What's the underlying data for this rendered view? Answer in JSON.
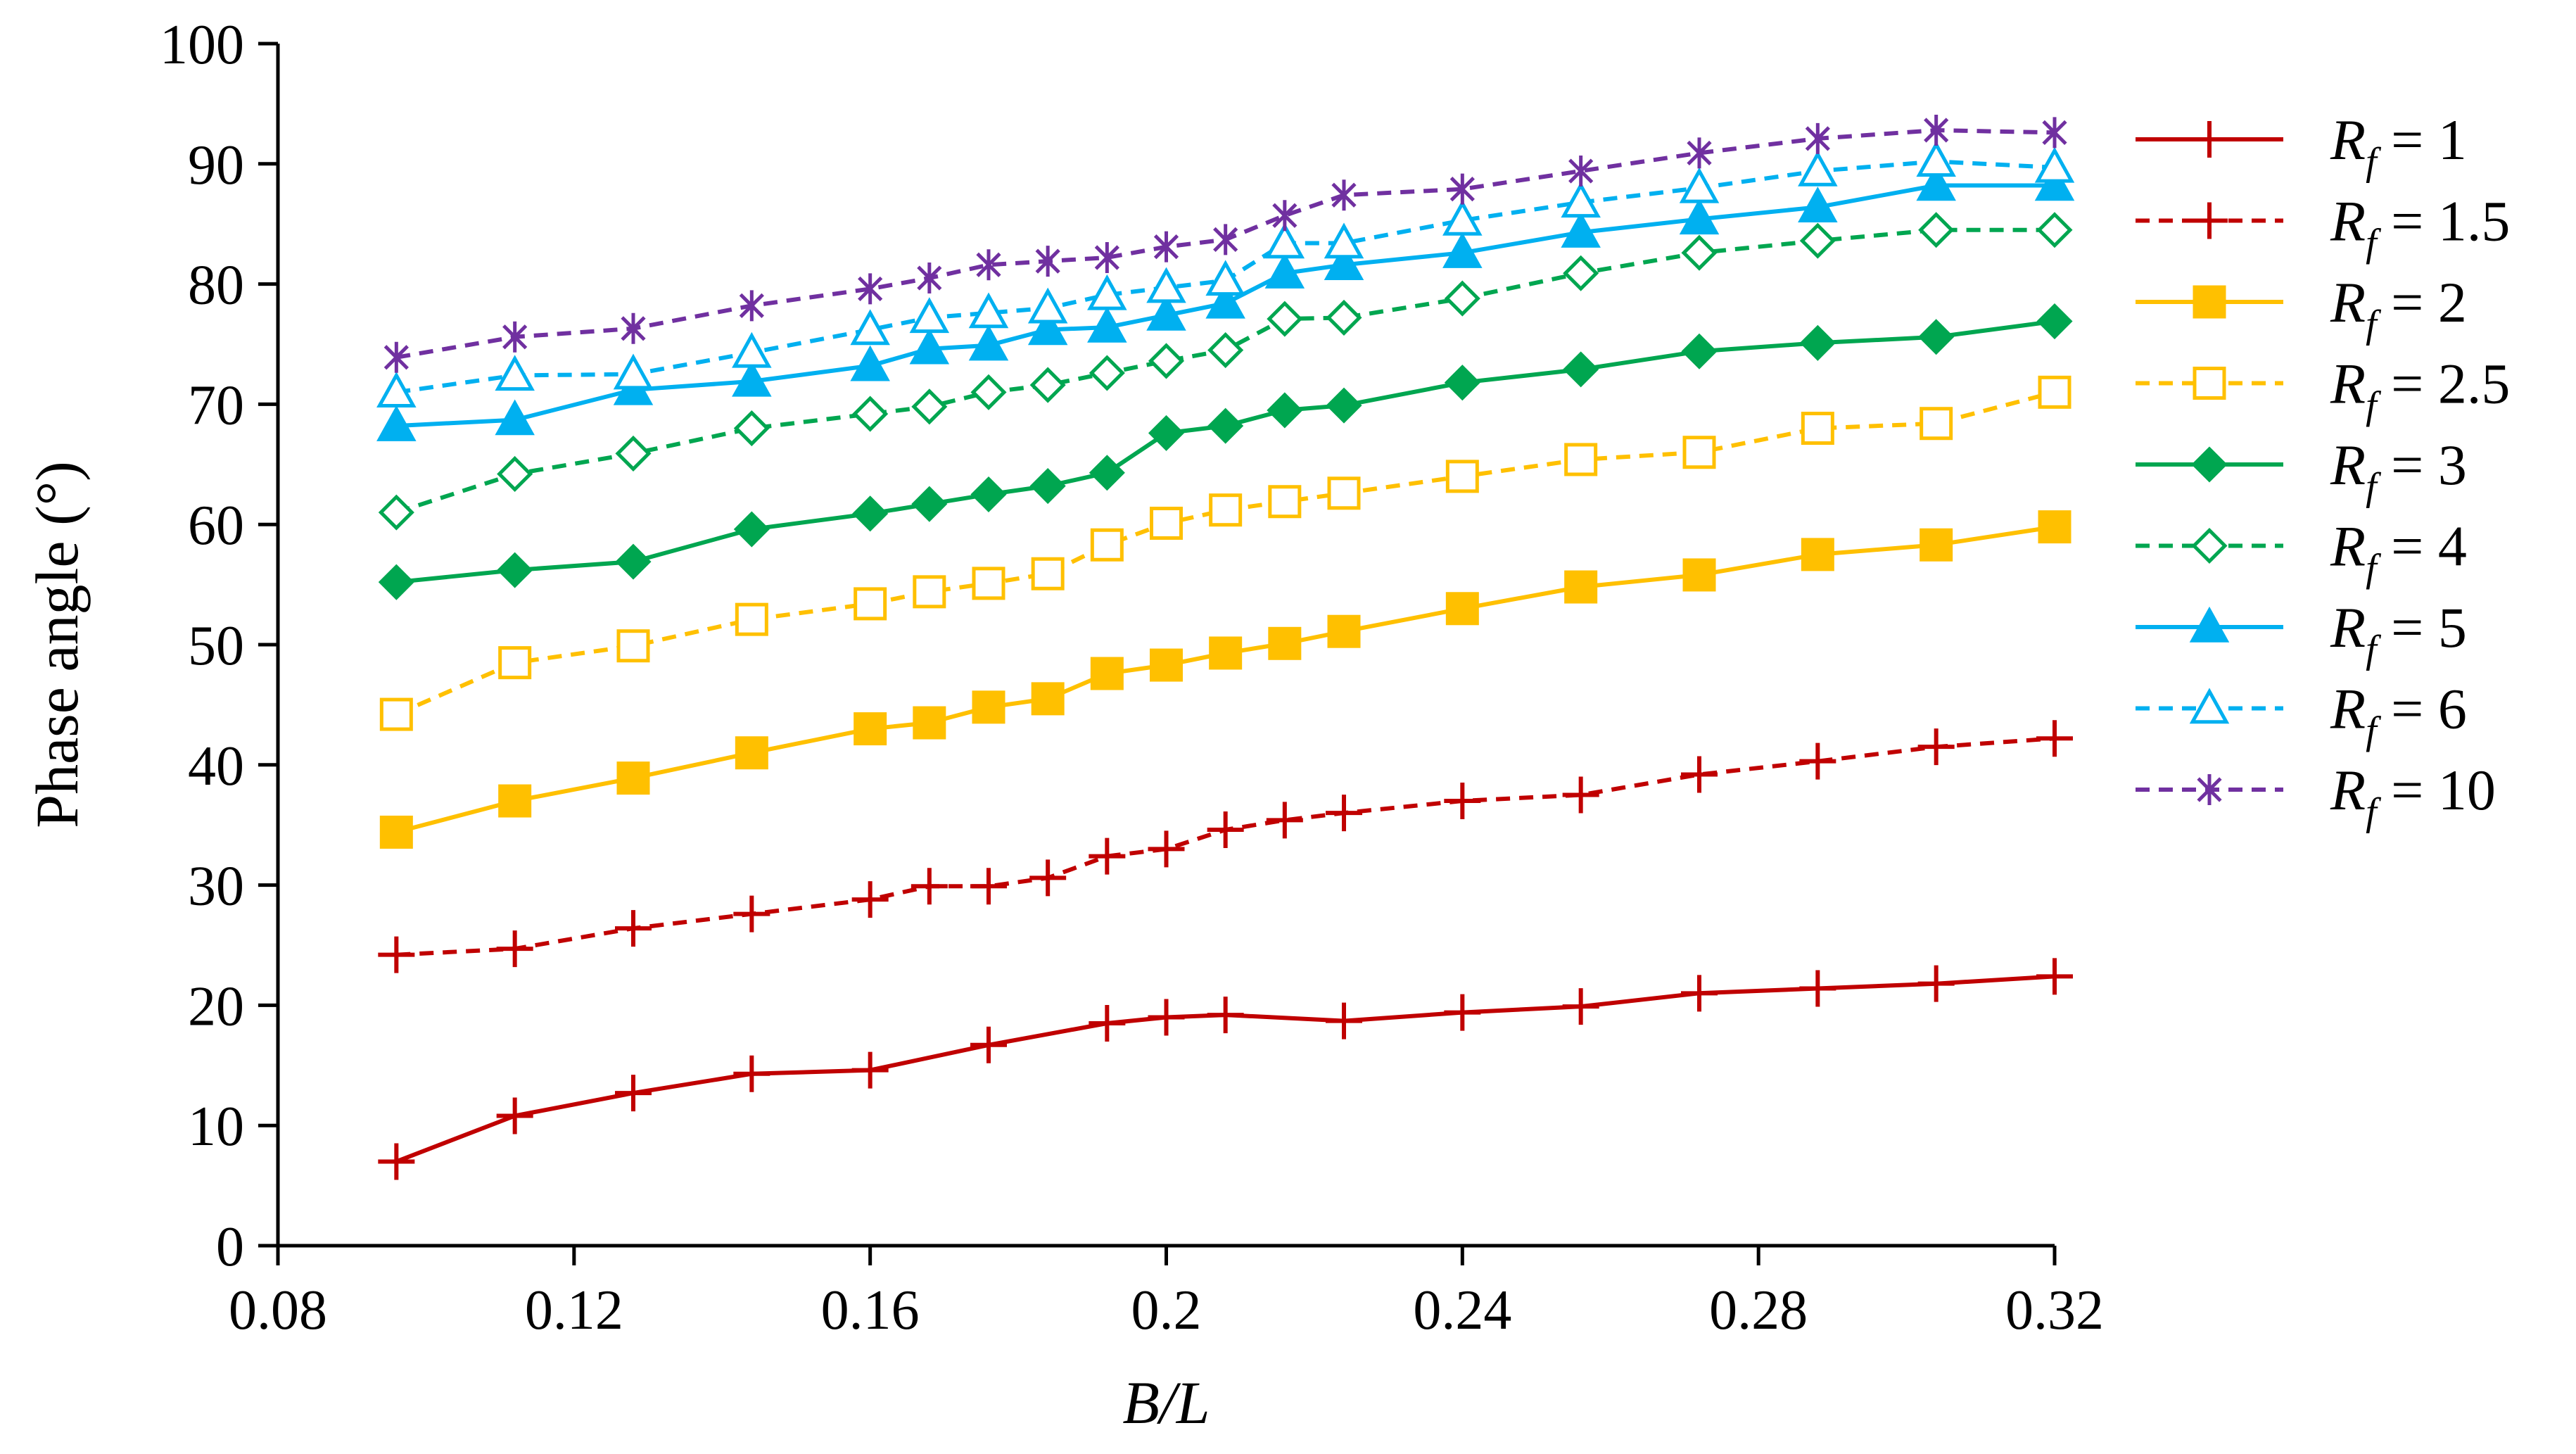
{
  "chart_data": {
    "type": "line",
    "title": "",
    "xlabel": "B/L",
    "ylabel": "Phase angle (°)",
    "xlim": [
      0.08,
      0.32
    ],
    "ylim": [
      0,
      100
    ],
    "x_ticks": [
      0.08,
      0.12,
      0.16,
      0.2,
      0.24,
      0.28,
      0.32
    ],
    "x_tick_labels": [
      "0.08",
      "0.12",
      "0.16",
      "0.2",
      "0.24",
      "0.28",
      "0.32"
    ],
    "y_ticks": [
      0,
      10,
      20,
      30,
      40,
      50,
      60,
      70,
      80,
      90,
      100
    ],
    "y_tick_labels": [
      "0",
      "10",
      "20",
      "30",
      "40",
      "50",
      "60",
      "70",
      "80",
      "90",
      "100"
    ],
    "grid": false,
    "legend_position": "right",
    "x": [
      0.096,
      0.112,
      0.128,
      0.144,
      0.16,
      0.168,
      0.176,
      0.184,
      0.192,
      0.2,
      0.208,
      0.216,
      0.224,
      0.24,
      0.256,
      0.272,
      0.288,
      0.304,
      0.32
    ],
    "series": [
      {
        "name": "R_f = 1",
        "legend_prefix": "R",
        "legend_sub": "f",
        "legend_suffix": " = 1",
        "color": "#C00000",
        "dash": "solid",
        "marker": "plus",
        "values": [
          7.0,
          10.8,
          12.7,
          14.3,
          14.6,
          null,
          16.7,
          null,
          18.5,
          19.0,
          19.2,
          null,
          18.7,
          19.4,
          19.9,
          21.0,
          21.4,
          21.8,
          22.4
        ]
      },
      {
        "name": "R_f = 1.5",
        "legend_prefix": "R",
        "legend_sub": "f",
        "legend_suffix": " = 1.5",
        "color": "#C00000",
        "dash": "dashed",
        "marker": "plus",
        "values": [
          24.2,
          24.7,
          26.4,
          27.6,
          28.8,
          29.9,
          29.9,
          30.6,
          32.4,
          33.0,
          34.6,
          35.4,
          36.0,
          37.0,
          37.5,
          39.2,
          40.3,
          41.5,
          42.2
        ]
      },
      {
        "name": "R_f = 2",
        "legend_prefix": "R",
        "legend_sub": "f",
        "legend_suffix": " = 2",
        "color": "#FFC000",
        "dash": "solid",
        "marker": "square-filled",
        "values": [
          34.4,
          37.0,
          38.9,
          41.0,
          43.0,
          43.5,
          44.8,
          45.5,
          47.6,
          48.3,
          49.3,
          50.1,
          51.1,
          53.0,
          54.8,
          55.8,
          57.5,
          58.3,
          59.8
        ]
      },
      {
        "name": "R_f = 2.5",
        "legend_prefix": "R",
        "legend_sub": "f",
        "legend_suffix": " = 2.5",
        "color": "#FFC000",
        "dash": "dashed",
        "marker": "square-open",
        "values": [
          44.2,
          48.5,
          49.9,
          52.1,
          53.4,
          54.4,
          55.1,
          55.9,
          58.3,
          60.1,
          61.2,
          61.9,
          62.6,
          64.0,
          65.4,
          66.0,
          68.0,
          68.4,
          71.0
        ]
      },
      {
        "name": "R_f = 3",
        "legend_prefix": "R",
        "legend_sub": "f",
        "legend_suffix": " = 3",
        "color": "#00A650",
        "dash": "solid",
        "marker": "diamond-filled",
        "values": [
          55.2,
          56.2,
          56.9,
          59.6,
          60.9,
          61.7,
          62.5,
          63.2,
          64.3,
          67.6,
          68.2,
          69.5,
          69.9,
          71.8,
          72.9,
          74.4,
          75.1,
          75.6,
          76.9
        ]
      },
      {
        "name": "R_f = 4",
        "legend_prefix": "R",
        "legend_sub": "f",
        "legend_suffix": " = 4",
        "color": "#00A650",
        "dash": "dashed",
        "marker": "diamond-open",
        "values": [
          61.0,
          64.2,
          65.9,
          68.0,
          69.2,
          69.8,
          71.0,
          71.6,
          72.6,
          73.6,
          74.5,
          77.1,
          77.2,
          78.8,
          80.9,
          82.6,
          83.6,
          84.5,
          84.5
        ]
      },
      {
        "name": "R_f = 5",
        "legend_prefix": "R",
        "legend_sub": "f",
        "legend_suffix": " = 5",
        "color": "#00B0F0",
        "dash": "solid",
        "marker": "triangle-filled",
        "values": [
          68.2,
          68.7,
          71.2,
          71.9,
          73.2,
          74.6,
          74.9,
          76.2,
          76.4,
          77.4,
          78.4,
          80.9,
          81.6,
          82.6,
          84.3,
          85.4,
          86.4,
          88.2,
          88.2
        ]
      },
      {
        "name": "R_f = 6",
        "legend_prefix": "R",
        "legend_sub": "f",
        "legend_suffix": " = 6",
        "color": "#00B0F0",
        "dash": "dashed",
        "marker": "triangle-open",
        "values": [
          71.0,
          72.4,
          72.5,
          74.3,
          76.2,
          77.2,
          77.6,
          78.0,
          79.1,
          79.7,
          80.3,
          83.4,
          83.4,
          85.3,
          86.8,
          88.0,
          89.4,
          90.2,
          89.7
        ]
      },
      {
        "name": "R_f = 10",
        "legend_prefix": "R",
        "legend_sub": "f",
        "legend_suffix": " = 10",
        "color": "#7030A0",
        "dash": "dashed",
        "marker": "asterisk",
        "values": [
          73.9,
          75.6,
          76.3,
          78.2,
          79.6,
          80.5,
          81.6,
          81.9,
          82.2,
          83.1,
          83.7,
          85.7,
          87.4,
          87.9,
          89.4,
          90.9,
          92.1,
          92.8,
          92.6
        ]
      }
    ]
  }
}
